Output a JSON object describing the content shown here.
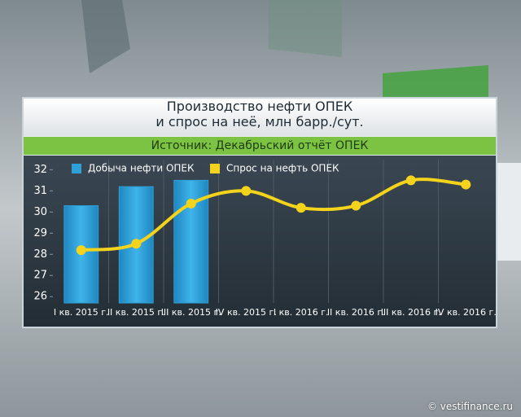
{
  "chart_data": {
    "type": "bar-line",
    "title": "Производство нефти ОПЕК\nи спрос на неё, млн барр./сут.",
    "subtitle": "Источник: Декабрьский отчёт ОПЕК",
    "categories": [
      "I кв. 2015 г.",
      "II кв. 2015 г.",
      "III кв. 2015 г.",
      "IV кв. 2015 г.",
      "I кв. 2016 г.",
      "II кв. 2016 г.",
      "III кв. 2016 г.",
      "IV кв. 2016 г."
    ],
    "series": [
      {
        "name": "Добыча нефти ОПЕК",
        "type": "bar",
        "color": "#2f9fd8",
        "values": [
          30.3,
          31.2,
          31.5,
          null,
          null,
          null,
          null,
          null
        ]
      },
      {
        "name": "Спрос на нефть ОПЕК",
        "type": "line",
        "color": "#f4d31c",
        "values": [
          28.2,
          28.5,
          30.4,
          31.0,
          30.2,
          30.3,
          31.5,
          31.3
        ]
      }
    ],
    "ylim": [
      25.7,
      32.4
    ],
    "yticks": [
      26,
      27,
      28,
      29,
      30,
      31,
      32
    ],
    "legend": "top-left"
  },
  "watermark": "© vestifinance.ru"
}
